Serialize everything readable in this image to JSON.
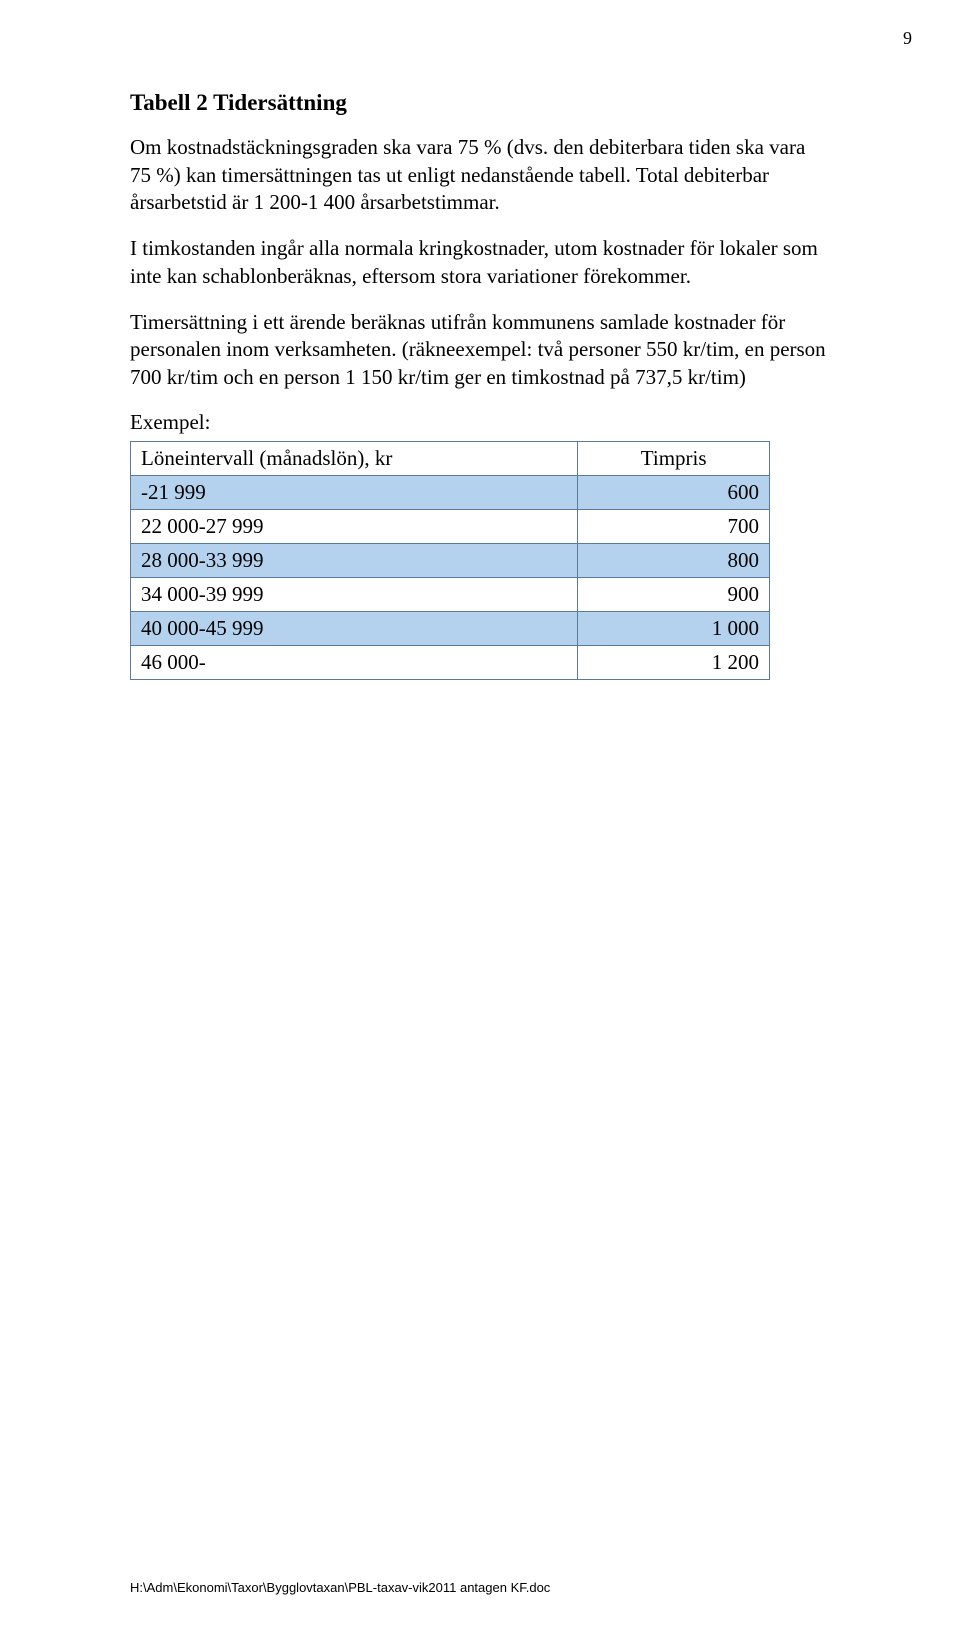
{
  "page_number": "9",
  "title": "Tabell 2 Tidersättning",
  "paragraphs": {
    "p1": "Om kostnadstäckningsgraden ska vara 75 % (dvs. den debiterbara tiden ska vara 75 %) kan timersättningen tas ut enligt nedanstående tabell. Total debiterbar årsarbetstid är 1 200-1 400 årsarbetstimmar.",
    "p2": "I timkostanden ingår alla normala kringkostnader, utom kostnader för lokaler som inte kan schablonberäknas, eftersom stora variationer förekommer.",
    "p3": "Timersättning i ett ärende beräknas utifrån kommunens samlade kostnader för personalen inom verksamheten. (räkneexempel: två personer 550 kr/tim, en person 700 kr/tim och en person 1 150 kr/tim ger en timkostnad på 737,5 kr/tim)"
  },
  "example_label": "Exempel:",
  "table": {
    "columns": [
      "Löneintervall (månadslön), kr",
      "Timpris"
    ],
    "header_bg": "#ffffff",
    "border_color": "#5b7a99",
    "shaded_bg": "#b4d2ed",
    "plain_bg": "#ffffff",
    "col_widths_pct": [
      70,
      30
    ],
    "rows": [
      {
        "range": "-21 999",
        "price": "600",
        "shaded": true
      },
      {
        "range": "22 000-27 999",
        "price": "700",
        "shaded": false
      },
      {
        "range": "28 000-33 999",
        "price": "800",
        "shaded": true
      },
      {
        "range": "34 000-39 999",
        "price": "900",
        "shaded": false
      },
      {
        "range": "40 000-45 999",
        "price": "1 000",
        "shaded": true
      },
      {
        "range": "46 000-",
        "price": "1 200",
        "shaded": false
      }
    ]
  },
  "footer": "H:\\Adm\\Ekonomi\\Taxor\\Bygglovtaxan\\PBL-taxav-vik2011 antagen KF.doc"
}
